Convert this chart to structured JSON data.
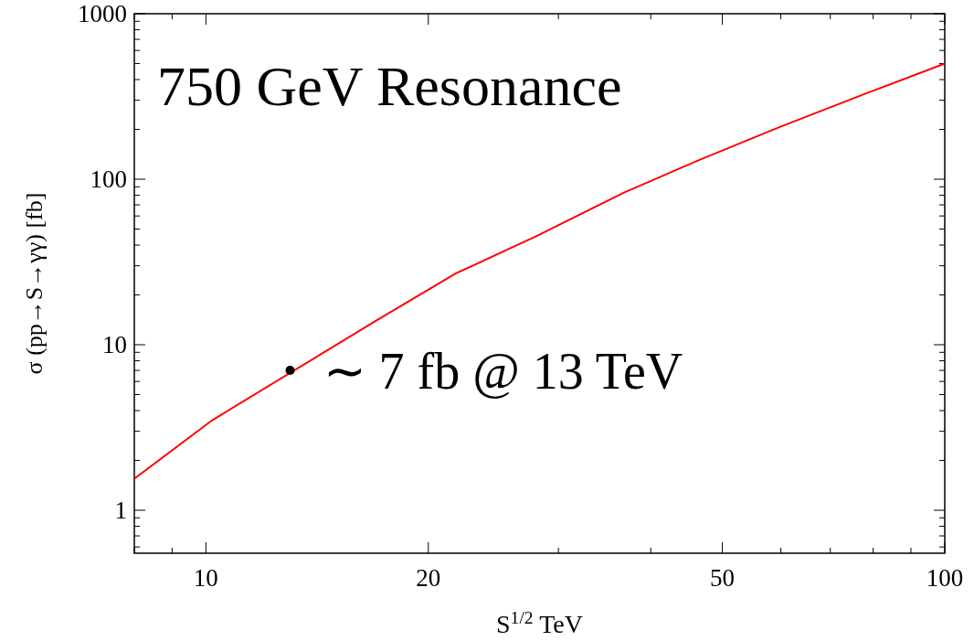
{
  "chart_data": {
    "type": "line",
    "log": "xy",
    "xlabel": "S$^{1/2}$ TeV",
    "ylabel": "σ (pp→S→γγ) [fb]",
    "xlim": [
      8,
      100
    ],
    "ylim": [
      0.55,
      1000
    ],
    "xticks": [
      {
        "value": 8,
        "label": null
      },
      {
        "value": 9,
        "label": null
      },
      10,
      {
        "value": 20,
        "label": "20"
      },
      {
        "value": 30,
        "label": null
      },
      {
        "value": 40,
        "label": null
      },
      50,
      {
        "value": 60,
        "label": null
      },
      {
        "value": 70,
        "label": null
      },
      {
        "value": 80,
        "label": null
      },
      {
        "value": 90,
        "label": null
      },
      100
    ],
    "yticks": [
      {
        "value": 0.6,
        "label": null
      },
      {
        "value": 0.7,
        "label": null
      },
      {
        "value": 0.8,
        "label": null
      },
      {
        "value": 0.9,
        "label": null
      },
      1,
      {
        "value": 2,
        "label": null
      },
      {
        "value": 3,
        "label": null
      },
      {
        "value": 4,
        "label": null
      },
      {
        "value": 5,
        "label": null
      },
      {
        "value": 6,
        "label": null
      },
      {
        "value": 7,
        "label": null
      },
      {
        "value": 8,
        "label": null
      },
      {
        "value": 9,
        "label": null
      },
      10,
      {
        "value": 20,
        "label": null
      },
      {
        "value": 30,
        "label": null
      },
      {
        "value": 40,
        "label": null
      },
      {
        "value": 50,
        "label": null
      },
      {
        "value": 60,
        "label": null
      },
      {
        "value": 70,
        "label": null
      },
      {
        "value": 80,
        "label": null
      },
      {
        "value": 90,
        "label": null
      },
      100,
      {
        "value": 200,
        "label": null
      },
      {
        "value": 300,
        "label": null
      },
      {
        "value": 400,
        "label": null
      },
      {
        "value": 500,
        "label": null
      },
      {
        "value": 600,
        "label": null
      },
      {
        "value": 700,
        "label": null
      },
      {
        "value": 800,
        "label": null
      },
      {
        "value": 900,
        "label": null
      },
      1000
    ],
    "grid": false,
    "series": [
      {
        "color": "#ff0000",
        "marker": "none",
        "line_style": "solid",
        "x": [
          8,
          10.2,
          17,
          21.8,
          28.2,
          36.8,
          46.4,
          59.7,
          77.7,
          100
        ],
        "values": [
          1.55,
          3.5,
          14,
          27,
          46,
          83,
          130,
          206,
          326,
          500
        ]
      },
      {
        "type": "scatter",
        "color": "#000000",
        "marker": "circle",
        "x": [
          13
        ],
        "values": [
          7
        ]
      }
    ],
    "annotations": [
      "750 GeV Resonance",
      {
        "text": "∼ 7 fb @ 13 TeV",
        "x": 13,
        "y": 7
      }
    ]
  }
}
